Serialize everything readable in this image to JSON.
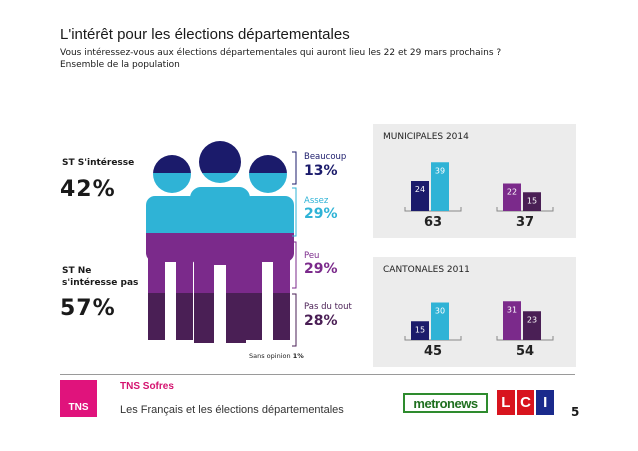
{
  "title": "L'intérêt pour les élections départementales",
  "subtitle_1": "Vous intéressez-vous aux élections départementales qui auront lieu les 22 et 29 mars prochains ?",
  "subtitle_2": "Ensemble de la population",
  "colors": {
    "dark_navy": "#1b1b6b",
    "light_blue": "#2fb3d6",
    "purple": "#7b2a8b",
    "dark_purple": "#4a1f55",
    "panel_bg": "#ececec",
    "accent_pink": "#e0137c"
  },
  "summary": {
    "interest_label": "ST S'intéresse",
    "interest_pct": "42%",
    "no_interest_label_1": "ST Ne",
    "no_interest_label_2": "s'intéresse pas",
    "no_interest_pct": "57%",
    "no_opinion_label": "Sans opinion",
    "no_opinion_pct": "1%"
  },
  "chart_data": [
    {
      "type": "bar",
      "title": "",
      "categories": [
        "Beaucoup",
        "Assez",
        "Peu",
        "Pas du tout"
      ],
      "values": [
        13,
        29,
        29,
        28
      ],
      "value_labels": [
        "13%",
        "29%",
        "29%",
        "28%"
      ],
      "colors": [
        "#1b1b6b",
        "#2fb3d6",
        "#7b2a8b",
        "#4a1f55"
      ]
    },
    {
      "type": "bar",
      "title": "MUNICIPALES 2014",
      "groups": [
        {
          "total": 63,
          "bars": [
            {
              "value": 24,
              "color": "#1b1b6b"
            },
            {
              "value": 39,
              "color": "#2fb3d6"
            }
          ]
        },
        {
          "total": 37,
          "bars": [
            {
              "value": 22,
              "color": "#7b2a8b"
            },
            {
              "value": 15,
              "color": "#4a1f55"
            }
          ]
        }
      ]
    },
    {
      "type": "bar",
      "title": "CANTONALES 2011",
      "groups": [
        {
          "total": 45,
          "bars": [
            {
              "value": 15,
              "color": "#1b1b6b"
            },
            {
              "value": 30,
              "color": "#2fb3d6"
            }
          ]
        },
        {
          "total": 54,
          "bars": [
            {
              "value": 31,
              "color": "#7b2a8b"
            },
            {
              "value": 23,
              "color": "#4a1f55"
            }
          ]
        }
      ]
    }
  ],
  "footer": {
    "brand": "TNS Sofres",
    "logo_text": "TNS",
    "text": "Les Français et les élections départementales",
    "metronews": "metronews",
    "lci": [
      "L",
      "C",
      "I"
    ],
    "page_number": "5"
  }
}
